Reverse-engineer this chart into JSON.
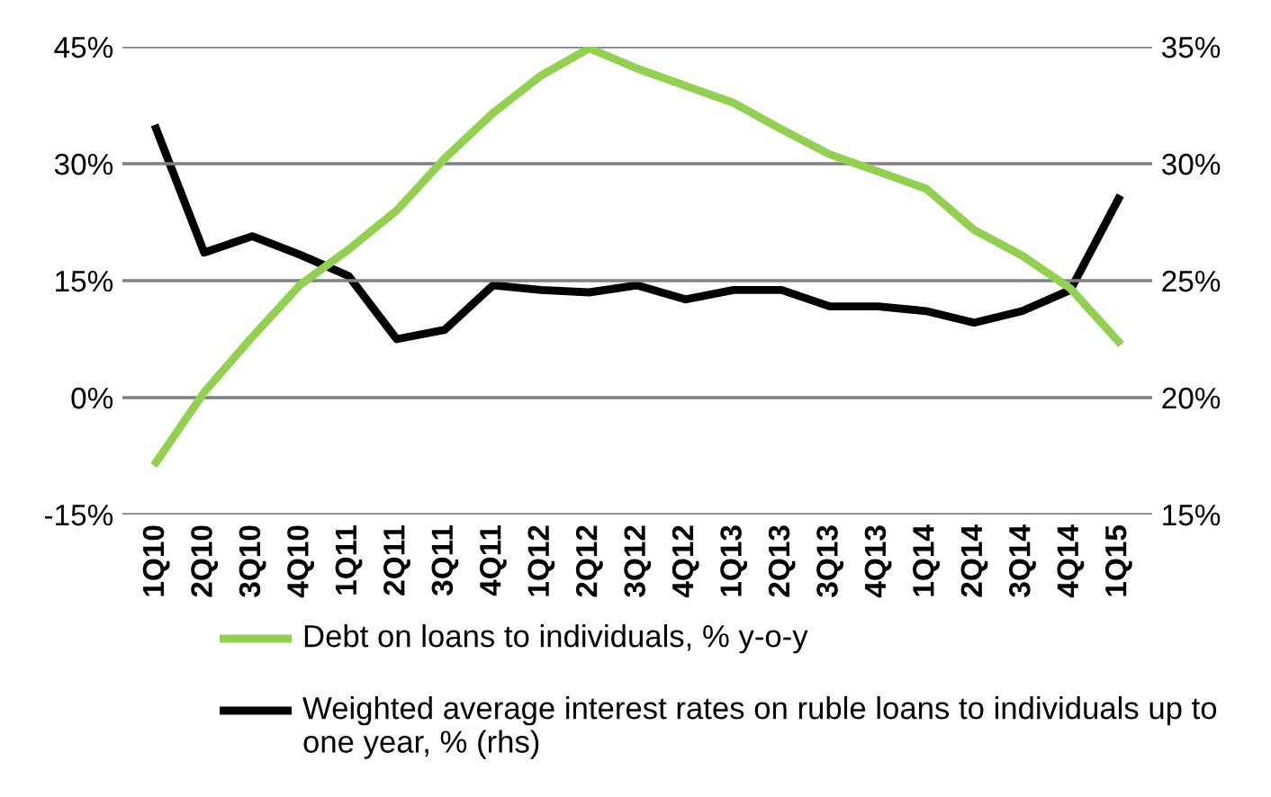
{
  "chart_data": {
    "type": "line",
    "categories": [
      "1Q10",
      "2Q10",
      "3Q10",
      "4Q10",
      "1Q11",
      "2Q11",
      "3Q11",
      "4Q11",
      "1Q12",
      "2Q12",
      "3Q12",
      "4Q12",
      "1Q13",
      "2Q13",
      "3Q13",
      "4Q13",
      "1Q14",
      "2Q14",
      "3Q14",
      "4Q14",
      "1Q15"
    ],
    "series": [
      {
        "name": "Debt on loans to individuals, % y-o-y",
        "color": "#92d050",
        "values": [
          -8.3,
          0.7,
          7.8,
          14.5,
          19,
          24,
          30.7,
          36.5,
          41.3,
          44.8,
          42.2,
          40,
          37.8,
          34.4,
          31.2,
          29,
          26.8,
          21.5,
          18.2,
          14,
          7.2
        ]
      },
      {
        "name": "Weighted average interest rates on ruble loans to individuals up to one year, % (rhs)",
        "color": "#000000",
        "axis": "y2",
        "values": [
          31.5,
          26.2,
          26.9,
          26.1,
          25.2,
          22.5,
          22.9,
          24.8,
          24.6,
          24.5,
          24.8,
          24.2,
          24.6,
          24.6,
          23.9,
          23.9,
          23.7,
          23.2,
          23.7,
          24.6,
          28.5
        ]
      }
    ],
    "ylim": [
      -15,
      45
    ],
    "yticks": [
      {
        "value": -15,
        "label": "-15%"
      },
      {
        "value": 0,
        "label": "0%"
      },
      {
        "value": 15,
        "label": "15%"
      },
      {
        "value": 30,
        "label": "30%"
      },
      {
        "value": 45,
        "label": "45%"
      }
    ],
    "y2lim": [
      15,
      35
    ],
    "y2ticks": [
      {
        "value": 15,
        "label": "15%"
      },
      {
        "value": 20,
        "label": "20%"
      },
      {
        "value": 25,
        "label": "25%"
      },
      {
        "value": 30,
        "label": "30%"
      },
      {
        "value": 35,
        "label": "35%"
      }
    ],
    "grid": "y",
    "legend": "bottom",
    "line_style": "solid",
    "marker": "none"
  }
}
